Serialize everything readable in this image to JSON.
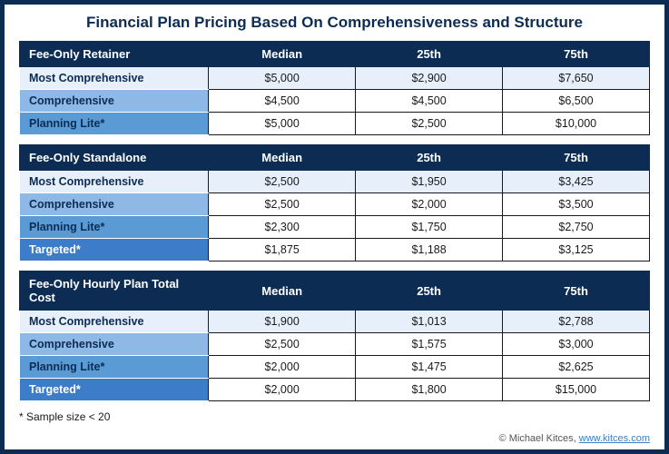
{
  "title": "Financial Plan Pricing Based On Comprehensiveness and Structure",
  "columns": [
    "Median",
    "25th",
    "75th"
  ],
  "colors": {
    "border": "#0d2c54",
    "header_bg": "#0d2c54",
    "header_text": "#ffffff",
    "row_shades": [
      "#e6effa",
      "#8eb8e5",
      "#5a9bd5",
      "#3d7cc9"
    ],
    "text": "#1a1a1a",
    "link": "#3d7cc9"
  },
  "tables": [
    {
      "heading": "Fee-Only Retainer",
      "rows": [
        {
          "label": "Most Comprehensive",
          "values": [
            "$5,000",
            "$2,900",
            "$7,650"
          ]
        },
        {
          "label": "Comprehensive",
          "values": [
            "$4,500",
            "$4,500",
            "$6,500"
          ]
        },
        {
          "label": "Planning Lite*",
          "values": [
            "$5,000",
            "$2,500",
            "$10,000"
          ]
        }
      ]
    },
    {
      "heading": "Fee-Only Standalone",
      "rows": [
        {
          "label": "Most Comprehensive",
          "values": [
            "$2,500",
            "$1,950",
            "$3,425"
          ]
        },
        {
          "label": "Comprehensive",
          "values": [
            "$2,500",
            "$2,000",
            "$3,500"
          ]
        },
        {
          "label": "Planning Lite*",
          "values": [
            "$2,300",
            "$1,750",
            "$2,750"
          ]
        },
        {
          "label": "Targeted*",
          "values": [
            "$1,875",
            "$1,188",
            "$3,125"
          ]
        }
      ]
    },
    {
      "heading": "Fee-Only Hourly Plan Total Cost",
      "rows": [
        {
          "label": "Most Comprehensive",
          "values": [
            "$1,900",
            "$1,013",
            "$2,788"
          ]
        },
        {
          "label": "Comprehensive",
          "values": [
            "$2,500",
            "$1,575",
            "$3,000"
          ]
        },
        {
          "label": "Planning Lite*",
          "values": [
            "$2,000",
            "$1,475",
            "$2,625"
          ]
        },
        {
          "label": "Targeted*",
          "values": [
            "$2,000",
            "$1,800",
            "$15,000"
          ]
        }
      ]
    }
  ],
  "footnote": "* Sample size < 20",
  "credit_prefix": "© Michael Kitces, ",
  "credit_link_text": "www.kitces.com"
}
